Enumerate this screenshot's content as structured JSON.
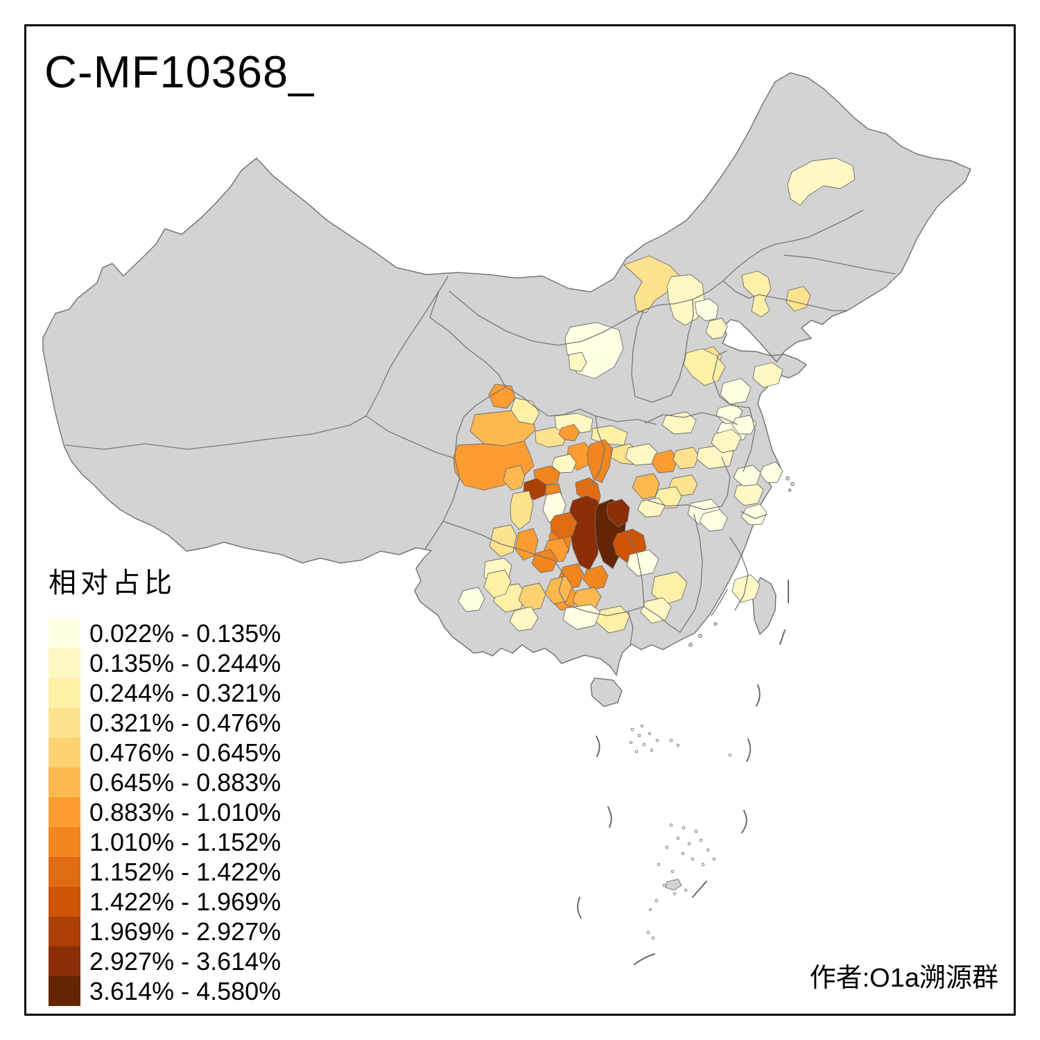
{
  "title": "C-MF10368_",
  "attribution": "作者:O1a溯源群",
  "legend": {
    "title": "相对占比",
    "items": [
      {
        "label": "0.022% - 0.135%",
        "color": "#FFFFE3"
      },
      {
        "label": "0.135% - 0.244%",
        "color": "#FFF8C5"
      },
      {
        "label": "0.244% - 0.321%",
        "color": "#FEF0A7"
      },
      {
        "label": "0.321% - 0.476%",
        "color": "#FEE28E"
      },
      {
        "label": "0.476% - 0.645%",
        "color": "#FDD271"
      },
      {
        "label": "0.645% - 0.883%",
        "color": "#FDB850"
      },
      {
        "label": "0.883% - 1.010%",
        "color": "#FD9C31"
      },
      {
        "label": "1.010% - 1.152%",
        "color": "#F1861F"
      },
      {
        "label": "1.152% - 1.422%",
        "color": "#DF6C12"
      },
      {
        "label": "1.422% - 1.969%",
        "color": "#CE5406"
      },
      {
        "label": "1.969% - 2.927%",
        "color": "#AB3F05"
      },
      {
        "label": "2.927% - 3.614%",
        "color": "#8B2E06"
      },
      {
        "label": "3.614% - 4.580%",
        "color": "#642505"
      }
    ]
  },
  "map": {
    "land_fill": "#D3D3D3",
    "border_color": "#767676",
    "frame_color": "#000000",
    "background": "#FFFFFF",
    "islet_stroke": "#7A7A7A",
    "dash_color": "#6A6A6A"
  }
}
